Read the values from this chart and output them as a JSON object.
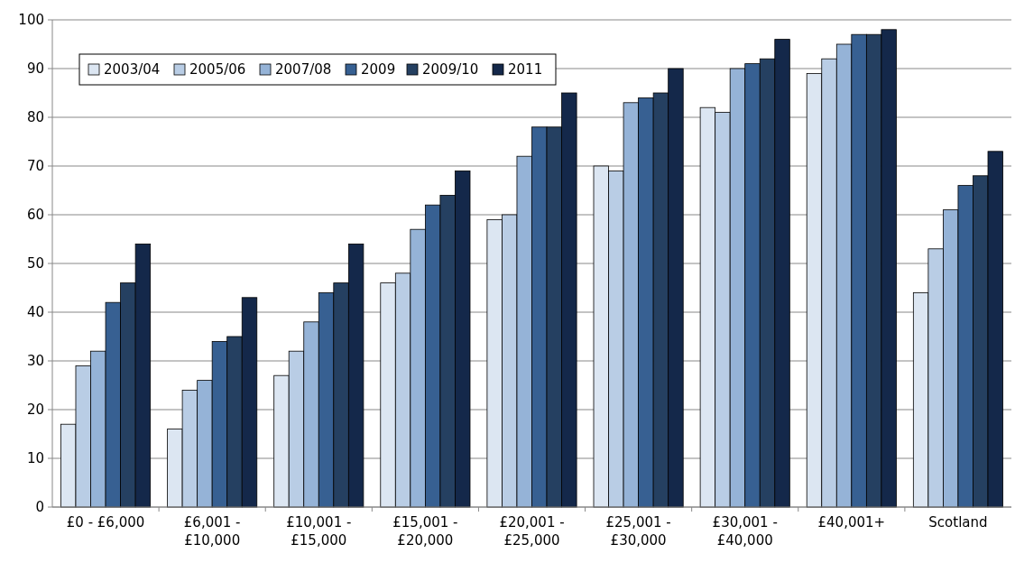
{
  "chart_data": {
    "type": "bar",
    "categories": [
      "£0 - £6,000",
      "£6,001 - £10,000",
      "£10,001 - £15,000",
      "£15,001 - £20,000",
      "£20,001 - £25,000",
      "£25,001 - £30,000",
      "£30,001 - £40,000",
      "£40,001+",
      "Scotland"
    ],
    "series": [
      {
        "name": "2003/04",
        "color": "#dce6f2",
        "values": [
          17,
          16,
          27,
          46,
          59,
          70,
          82,
          89,
          44
        ]
      },
      {
        "name": "2005/06",
        "color": "#b9cde5",
        "values": [
          29,
          24,
          32,
          48,
          60,
          69,
          81,
          92,
          53
        ]
      },
      {
        "name": "2007/08",
        "color": "#95b3d7",
        "values": [
          32,
          26,
          38,
          57,
          72,
          83,
          90,
          95,
          61
        ]
      },
      {
        "name": "2009",
        "color": "#376092",
        "values": [
          42,
          34,
          44,
          62,
          78,
          84,
          91,
          97,
          66
        ]
      },
      {
        "name": "2009/10",
        "color": "#254061",
        "values": [
          46,
          35,
          46,
          64,
          78,
          85,
          92,
          97,
          68
        ]
      },
      {
        "name": "2011",
        "color": "#14284a",
        "values": [
          54,
          43,
          54,
          69,
          85,
          90,
          96,
          98,
          73
        ]
      }
    ],
    "ylim": [
      0,
      100
    ],
    "yticks": [
      0,
      10,
      20,
      30,
      40,
      50,
      60,
      70,
      80,
      90,
      100
    ],
    "grid": "y",
    "legend": "top left"
  }
}
